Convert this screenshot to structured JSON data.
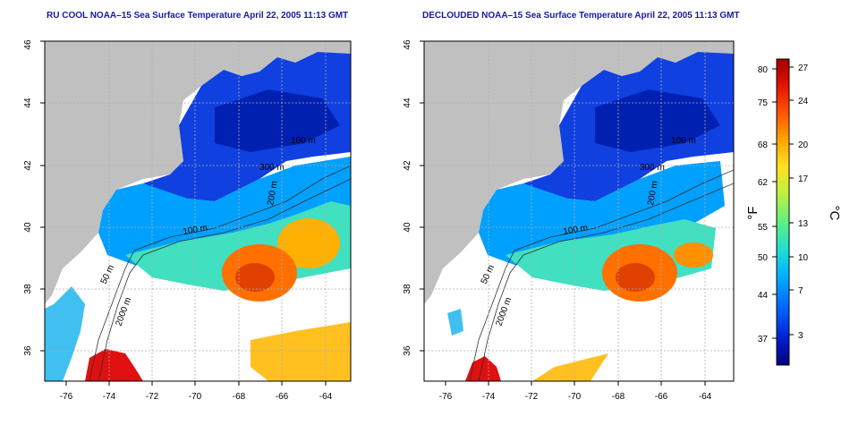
{
  "panels": [
    {
      "title": "RU COOL NOAA–15 Sea Surface Temperature April 22, 2005 11:13 GMT",
      "contour_labels": [
        "50 m",
        "2000 m",
        "100 m",
        "200 m",
        "300 m",
        "100 m"
      ]
    },
    {
      "title": "DECLOUDED NOAA–15 Sea Surface Temperature April 22, 2005 11:13 GMT",
      "contour_labels": [
        "50 m",
        "2000 m",
        "100 m",
        "200 m",
        "300 m",
        "100 m"
      ]
    }
  ],
  "axes": {
    "lon_ticks": [
      "-76",
      "-74",
      "-72",
      "-70",
      "-68",
      "-66",
      "-64"
    ],
    "lat_ticks": [
      "36",
      "38",
      "40",
      "42",
      "44",
      "46"
    ],
    "lon_range": [
      -77.2,
      -62.8
    ],
    "lat_range": [
      35.0,
      46.0
    ]
  },
  "colorbar": {
    "fahrenheit_ticks": [
      "80",
      "75",
      "68",
      "62",
      "55",
      "50",
      "44",
      "37"
    ],
    "celsius_ticks": [
      "27",
      "24",
      "20",
      "17",
      "13",
      "10",
      "7",
      "3"
    ],
    "fahrenheit_unit": "°F",
    "celsius_unit": "°C",
    "colors": [
      "#000080",
      "#0020d0",
      "#0060ff",
      "#00b0ff",
      "#20e0d0",
      "#60f080",
      "#c0f040",
      "#ffe020",
      "#ffa000",
      "#ff5000",
      "#e01000",
      "#a00000"
    ]
  },
  "colors": {
    "land": "#c0c0c0",
    "title": "#1a1aa0",
    "grid": "#b0b0b0"
  }
}
